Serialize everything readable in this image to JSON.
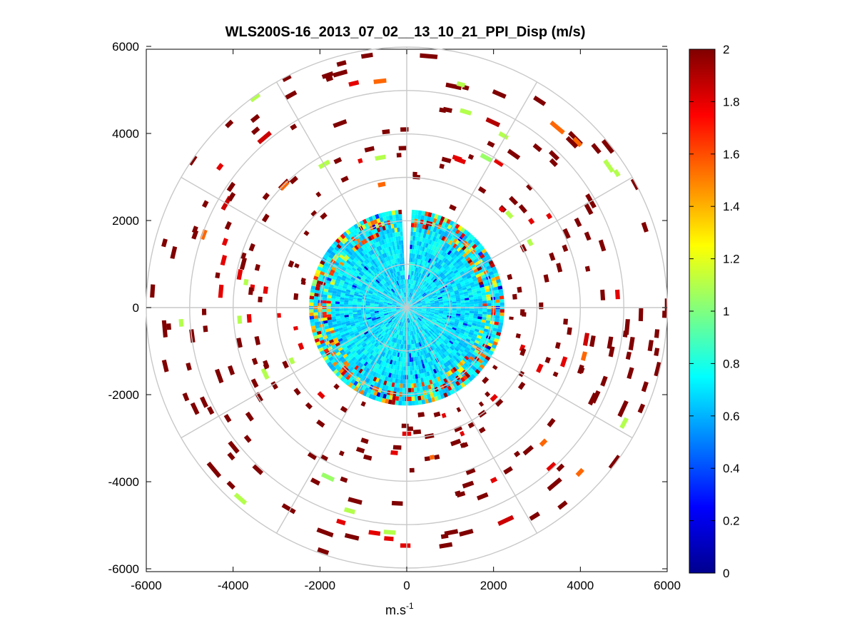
{
  "chart_data": {
    "type": "heatmap",
    "subtype": "polar-ppi",
    "title": "WLS200S-16_2013_07_02__13_10_21_PPI_Disp (m/s)",
    "xlabel_base": "m.s",
    "xlabel_exponent": "-1",
    "ylabel": "",
    "xlim": [
      -6000,
      6000
    ],
    "ylim": [
      -6000,
      6000
    ],
    "x_ticks": [
      "-6000",
      "-4000",
      "-2000",
      "0",
      "2000",
      "4000",
      "6000"
    ],
    "x_tick_values": [
      -6000,
      -4000,
      -2000,
      0,
      2000,
      4000,
      6000
    ],
    "y_ticks": [
      "6000",
      "4000",
      "2000",
      "0",
      "-2000",
      "-4000",
      "-6000"
    ],
    "y_tick_values": [
      6000,
      4000,
      2000,
      0,
      -2000,
      -4000,
      -6000
    ],
    "range_rings": [
      1000,
      2000,
      3000,
      4000,
      5000,
      6000
    ],
    "spoke_angles_deg": [
      0,
      30,
      60,
      90,
      120,
      150,
      180,
      210,
      240,
      270,
      300,
      330
    ],
    "colorbar": {
      "min": 0,
      "max": 2,
      "ticks": [
        "2",
        "1.8",
        "1.6",
        "1.4",
        "1.2",
        "1",
        "0.8",
        "0.6",
        "0.4",
        "0.2",
        "0"
      ],
      "tick_values": [
        2,
        1.8,
        1.6,
        1.4,
        1.2,
        1,
        0.8,
        0.6,
        0.4,
        0.2,
        0
      ],
      "colormap": "jet"
    },
    "inner_region": {
      "max_range": 2200,
      "typical_value": 0.7,
      "description_gap_azimuth_deg": [
        -4,
        4
      ]
    },
    "sample_cells": [
      {
        "az": 5,
        "r": 5800,
        "v": 2.0
      },
      {
        "az": 12,
        "r": 5200,
        "v": 2.0
      },
      {
        "az": 25,
        "r": 4700,
        "v": 1.9
      },
      {
        "az": 35,
        "r": 4300,
        "v": 2.0
      },
      {
        "az": 40,
        "r": 5400,
        "v": 1.55
      },
      {
        "az": 45,
        "r": 5500,
        "v": 2.0
      },
      {
        "az": 28,
        "r": 3900,
        "v": 1.05
      },
      {
        "az": 20,
        "r": 3600,
        "v": 1.8
      },
      {
        "az": 60,
        "r": 4900,
        "v": 2.0
      },
      {
        "az": 90,
        "r": 6000,
        "v": 2.0
      },
      {
        "az": 95,
        "r": 5100,
        "v": 2.0
      },
      {
        "az": 100,
        "r": 4200,
        "v": 1.85
      },
      {
        "az": 115,
        "r": 5500,
        "v": 2.0
      },
      {
        "az": 140,
        "r": 5300,
        "v": 2.0
      },
      {
        "az": 155,
        "r": 5400,
        "v": 1.85
      },
      {
        "az": 160,
        "r": 3300,
        "v": 2.0
      },
      {
        "az": 170,
        "r": 3000,
        "v": 2.0
      },
      {
        "az": 180,
        "r": 2900,
        "v": 1.8
      },
      {
        "az": 195,
        "r": 4600,
        "v": 2.0
      },
      {
        "az": 200,
        "r": 5500,
        "v": 2.0
      },
      {
        "az": 205,
        "r": 4300,
        "v": 1.05
      },
      {
        "az": 230,
        "r": 5800,
        "v": 2.0
      },
      {
        "az": 245,
        "r": 3600,
        "v": 1.1
      },
      {
        "az": 250,
        "r": 4600,
        "v": 2.0
      },
      {
        "az": 265,
        "r": 5600,
        "v": 2.0
      },
      {
        "az": 275,
        "r": 4300,
        "v": 1.8
      },
      {
        "az": 285,
        "r": 3900,
        "v": 2.0
      },
      {
        "az": 300,
        "r": 4800,
        "v": 1.85
      },
      {
        "az": 315,
        "r": 4000,
        "v": 2.0
      },
      {
        "az": 320,
        "r": 5100,
        "v": 1.85
      },
      {
        "az": 330,
        "r": 3800,
        "v": 1.1
      },
      {
        "az": 340,
        "r": 4500,
        "v": 2.0
      },
      {
        "az": 350,
        "r": 3500,
        "v": 1.1
      }
    ]
  }
}
